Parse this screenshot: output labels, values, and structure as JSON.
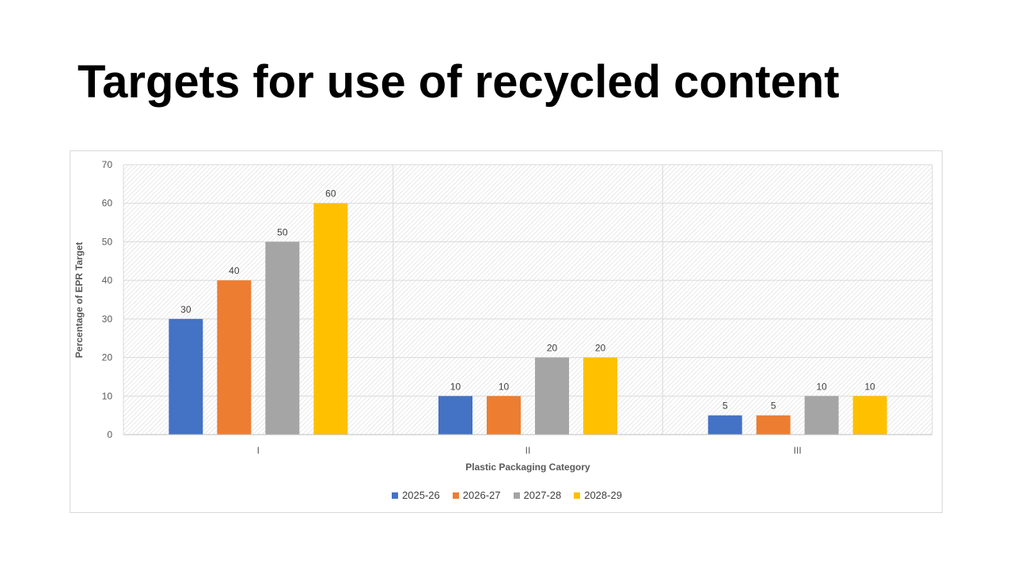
{
  "slide": {
    "title": "Targets for use of recycled content"
  },
  "chart_data": {
    "type": "bar",
    "categories": [
      "I",
      "II",
      "III"
    ],
    "series": [
      {
        "name": "2025-26",
        "color": "#4472C4",
        "values": [
          30,
          10,
          5
        ]
      },
      {
        "name": "2026-27",
        "color": "#ED7D31",
        "values": [
          40,
          10,
          5
        ]
      },
      {
        "name": "2027-28",
        "color": "#A5A5A5",
        "values": [
          50,
          20,
          10
        ]
      },
      {
        "name": "2028-29",
        "color": "#FFC000",
        "values": [
          60,
          20,
          10
        ]
      }
    ],
    "xlabel": "Plastic Packaging Category",
    "ylabel": "Percentage of EPR Target",
    "ylim": [
      0,
      70
    ],
    "yticks": [
      0,
      10,
      20,
      30,
      40,
      50,
      60,
      70
    ],
    "data_labels": true,
    "grid": true,
    "legend_position": "bottom"
  }
}
